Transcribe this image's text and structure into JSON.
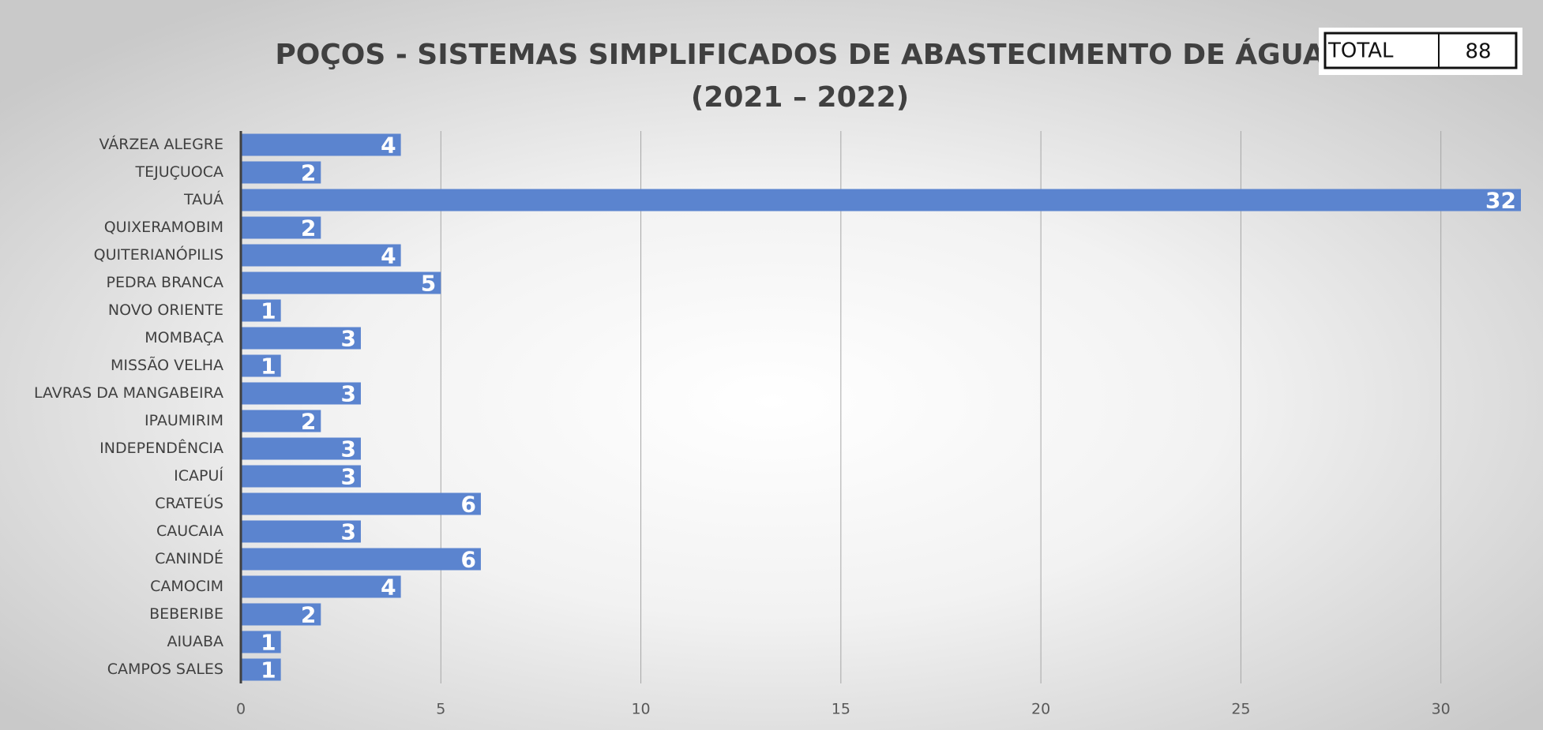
{
  "chart_data": {
    "type": "bar",
    "orientation": "horizontal",
    "title": "POÇOS - SISTEMAS SIMPLIFICADOS DE ABASTECIMENTO DE ÁGUA",
    "subtitle": "(2021 – 2022)",
    "categories": [
      "VÁRZEA ALEGRE",
      "TEJUÇUOCA",
      "TAUÁ",
      "QUIXERAMOBIM",
      "QUITERIANÓPILIS",
      "PEDRA BRANCA",
      "NOVO ORIENTE",
      "MOMBAÇA",
      "MISSÃO VELHA",
      "LAVRAS DA MANGABEIRA",
      "IPAUMIRIM",
      "INDEPENDÊNCIA",
      "ICAPUÍ",
      "CRATEÚS",
      "CAUCAIA",
      "CANINDÉ",
      "CAMOCIM",
      "BEBERIBE",
      "AIUABA",
      "CAMPOS SALES"
    ],
    "values": [
      4,
      2,
      32,
      2,
      4,
      5,
      1,
      3,
      1,
      3,
      2,
      3,
      3,
      6,
      3,
      6,
      4,
      2,
      1,
      1
    ],
    "color": "#5b84cf",
    "xlim": [
      0,
      32
    ],
    "xticks": [
      0,
      5,
      10,
      15,
      20,
      25,
      30
    ],
    "grid": true,
    "total": {
      "label": "TOTAL",
      "value": 88
    }
  }
}
